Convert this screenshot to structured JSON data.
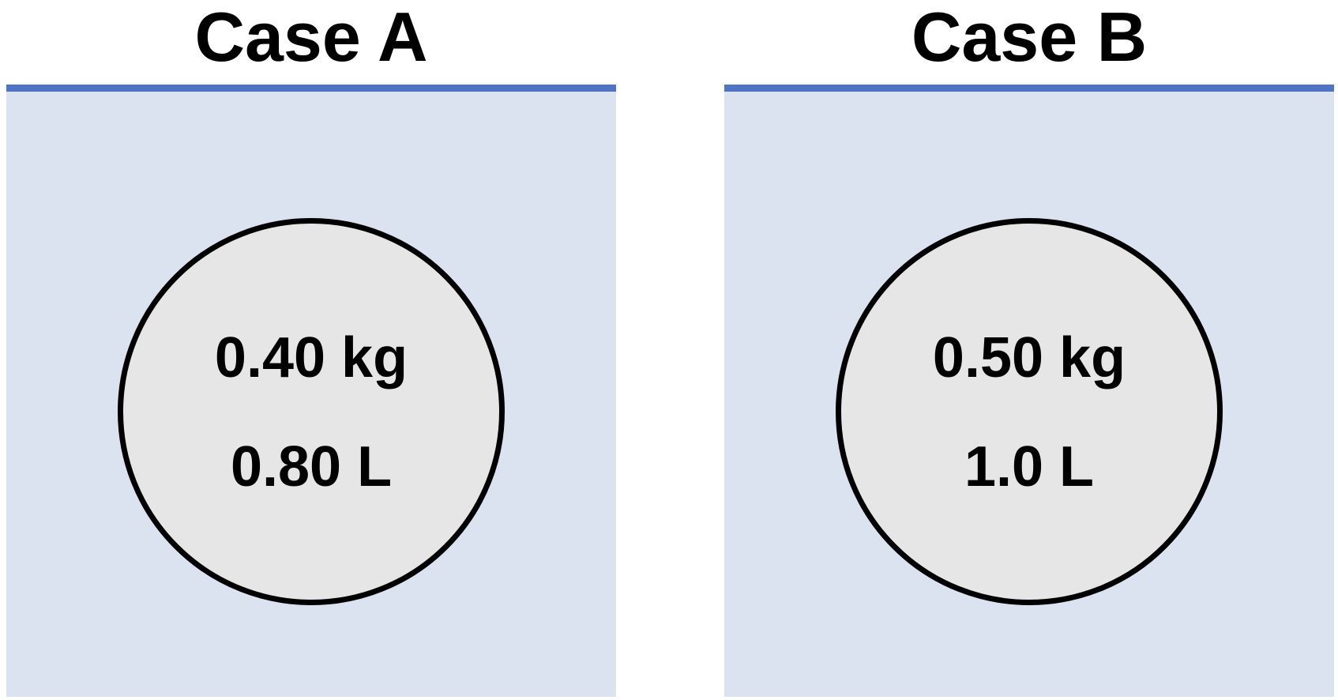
{
  "cases": [
    {
      "title": "Case A",
      "mass": "0.40 kg",
      "volume": "0.80 L"
    },
    {
      "title": "Case B",
      "mass": "0.50 kg",
      "volume": "1.0 L"
    }
  ],
  "colors": {
    "water_fill": "#dbe2f0",
    "water_surface": "#4f74c3",
    "object_fill": "#e6e6e6",
    "object_outline": "#000000",
    "text": "#000000"
  }
}
